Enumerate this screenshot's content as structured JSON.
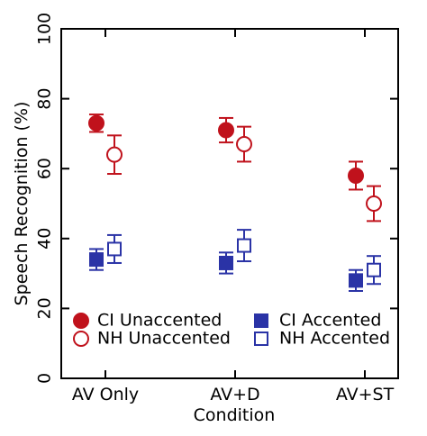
{
  "chart_data": {
    "type": "scatter",
    "xlabel": "Condition",
    "ylabel": "Speech Recognition (%)",
    "categories": [
      "AV Only",
      "AV+D",
      "AV+ST"
    ],
    "ylim": [
      0,
      100
    ],
    "yticks": [
      0,
      20,
      40,
      60,
      80,
      100
    ],
    "ytick_labels": [
      "0",
      "20",
      "40",
      "60",
      "80",
      "100"
    ],
    "grid": false,
    "legend": "lower-center",
    "series": [
      {
        "name": "CI Unaccented",
        "marker": "circle",
        "filled": true,
        "color": "#c0121c",
        "values": [
          73,
          71,
          58
        ],
        "err": [
          2.5,
          3.5,
          4
        ],
        "offset": -1
      },
      {
        "name": "NH Unaccented",
        "marker": "circle",
        "filled": false,
        "color": "#c0121c",
        "values": [
          64,
          67,
          50
        ],
        "err": [
          5.5,
          5,
          5
        ],
        "offset": 1
      },
      {
        "name": "CI Accented",
        "marker": "square",
        "filled": true,
        "color": "#2a33a6",
        "values": [
          34,
          33,
          28
        ],
        "err": [
          3,
          3,
          3
        ],
        "offset": -1
      },
      {
        "name": "NH Accented",
        "marker": "square",
        "filled": false,
        "color": "#2a33a6",
        "values": [
          37,
          38,
          31
        ],
        "err": [
          4,
          4.5,
          4
        ],
        "offset": 1
      }
    ]
  }
}
